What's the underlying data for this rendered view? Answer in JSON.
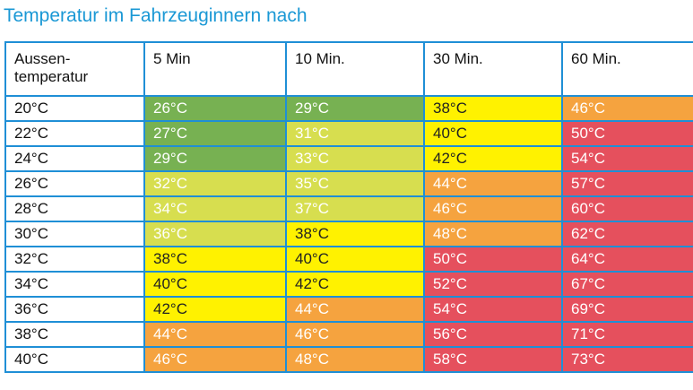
{
  "title": "Temperatur im Fahrzeuginnern nach",
  "table": {
    "header": [
      "Aussen-\ntemperatur",
      "5 Min",
      "10 Min.",
      "30 Min.",
      "60 Min."
    ],
    "rows": [
      [
        "20°C",
        "26°C",
        "29°C",
        "38°C",
        "46°C"
      ],
      [
        "22°C",
        "27°C",
        "31°C",
        "40°C",
        "50°C"
      ],
      [
        "24°C",
        "29°C",
        "33°C",
        "42°C",
        "54°C"
      ],
      [
        "26°C",
        "32°C",
        "35°C",
        "44°C",
        "57°C"
      ],
      [
        "28°C",
        "34°C",
        "37°C",
        "46°C",
        "60°C"
      ],
      [
        "30°C",
        "36°C",
        "38°C",
        "48°C",
        "62°C"
      ],
      [
        "32°C",
        "38°C",
        "40°C",
        "50°C",
        "64°C"
      ],
      [
        "34°C",
        "40°C",
        "42°C",
        "52°C",
        "67°C"
      ],
      [
        "36°C",
        "42°C",
        "44°C",
        "54°C",
        "69°C"
      ],
      [
        "38°C",
        "44°C",
        "46°C",
        "56°C",
        "71°C"
      ],
      [
        "40°C",
        "46°C",
        "48°C",
        "58°C",
        "73°C"
      ]
    ],
    "colors": [
      [
        "#ffffff",
        "#77b152",
        "#77b152",
        "#fff200",
        "#f5a33f"
      ],
      [
        "#ffffff",
        "#77b152",
        "#d7de4f",
        "#fff200",
        "#e5505d"
      ],
      [
        "#ffffff",
        "#77b152",
        "#d7de4f",
        "#fff200",
        "#e5505d"
      ],
      [
        "#ffffff",
        "#d7de4f",
        "#d7de4f",
        "#f5a33f",
        "#e5505d"
      ],
      [
        "#ffffff",
        "#d7de4f",
        "#d7de4f",
        "#f5a33f",
        "#e5505d"
      ],
      [
        "#ffffff",
        "#d7de4f",
        "#fff200",
        "#f5a33f",
        "#e5505d"
      ],
      [
        "#ffffff",
        "#fff200",
        "#fff200",
        "#e5505d",
        "#e5505d"
      ],
      [
        "#ffffff",
        "#fff200",
        "#fff200",
        "#e5505d",
        "#e5505d"
      ],
      [
        "#ffffff",
        "#fff200",
        "#f5a33f",
        "#e5505d",
        "#e5505d"
      ],
      [
        "#ffffff",
        "#f5a33f",
        "#f5a33f",
        "#e5505d",
        "#e5505d"
      ],
      [
        "#ffffff",
        "#f5a33f",
        "#f5a33f",
        "#e5505d",
        "#e5505d"
      ]
    ]
  }
}
